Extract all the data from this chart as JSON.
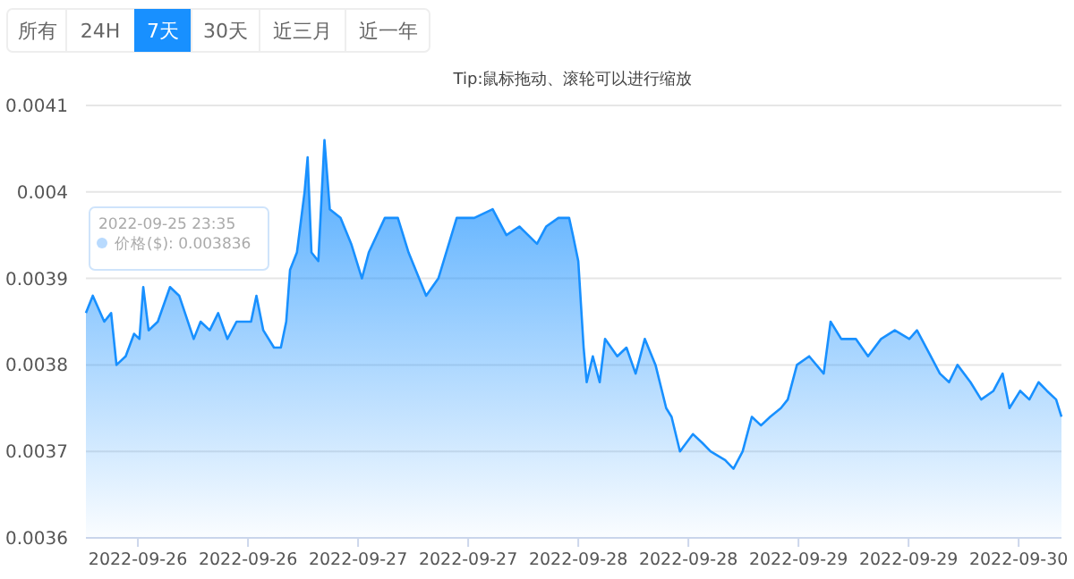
{
  "chart_data": {
    "type": "area",
    "subtitle": "Tip:鼠标拖动、滚轮可以进行缩放",
    "annotations": [
      "所有",
      "24H",
      "7天",
      "30天",
      "近三月",
      "近一年",
      "2022-09-25 23:35",
      "价格($): 0.003836"
    ],
    "xlim": [
      "2022-09-25T18:20",
      "2022-09-30T04:40"
    ],
    "xticks": [
      {
        "value": "2022-09-26T00:00",
        "label": "2022-09-26"
      },
      {
        "value": "2022-09-26T12:00",
        "label": "2022-09-26"
      },
      {
        "value": "2022-09-27T00:00",
        "label": "2022-09-27"
      },
      {
        "value": "2022-09-27T12:00",
        "label": "2022-09-27"
      },
      {
        "value": "2022-09-28T00:00",
        "label": "2022-09-28"
      },
      {
        "value": "2022-09-28T12:00",
        "label": "2022-09-28"
      },
      {
        "value": "2022-09-29T00:00",
        "label": "2022-09-29"
      },
      {
        "value": "2022-09-29T12:00",
        "label": "2022-09-29"
      },
      {
        "value": "2022-09-30T00:00",
        "label": "2022-09-30"
      }
    ],
    "ylim": [
      0.0036,
      0.0041
    ],
    "yticks": [
      0.0036,
      0.0037,
      0.0038,
      0.0039,
      0.004,
      0.0041
    ],
    "grid": "y",
    "x": [
      "2022-09-25T18:20",
      "2022-09-25T19:05",
      "2022-09-25T20:20",
      "2022-09-25T21:05",
      "2022-09-25T21:40",
      "2022-09-25T22:40",
      "2022-09-25T23:35",
      "2022-09-26T00:10",
      "2022-09-26T00:35",
      "2022-09-26T01:10",
      "2022-09-26T02:10",
      "2022-09-26T03:30",
      "2022-09-26T04:30",
      "2022-09-26T06:05",
      "2022-09-26T06:50",
      "2022-09-26T07:50",
      "2022-09-26T08:45",
      "2022-09-26T09:45",
      "2022-09-26T10:45",
      "2022-09-26T12:20",
      "2022-09-26T12:55",
      "2022-09-26T13:40",
      "2022-09-26T14:50",
      "2022-09-26T15:35",
      "2022-09-26T16:10",
      "2022-09-26T16:35",
      "2022-09-26T17:20",
      "2022-09-26T18:10",
      "2022-09-26T18:30",
      "2022-09-26T18:55",
      "2022-09-26T19:40",
      "2022-09-26T20:20",
      "2022-09-26T20:55",
      "2022-09-26T22:05",
      "2022-09-26T23:15",
      "2022-09-27T00:25",
      "2022-09-27T01:10",
      "2022-09-27T02:55",
      "2022-09-27T04:20",
      "2022-09-27T05:30",
      "2022-09-27T07:25",
      "2022-09-27T08:45",
      "2022-09-27T10:45",
      "2022-09-27T12:40",
      "2022-09-27T14:40",
      "2022-09-27T16:10",
      "2022-09-27T17:35",
      "2022-09-27T19:30",
      "2022-09-27T20:30",
      "2022-09-27T21:50",
      "2022-09-27T23:00",
      "2022-09-27T23:25",
      "2022-09-28T00:00",
      "2022-09-28T00:35",
      "2022-09-28T00:55",
      "2022-09-28T01:35",
      "2022-09-28T02:20",
      "2022-09-28T02:55",
      "2022-09-28T04:15",
      "2022-09-28T05:15",
      "2022-09-28T06:15",
      "2022-09-28T07:15",
      "2022-09-28T08:25",
      "2022-09-28T09:35",
      "2022-09-28T10:10",
      "2022-09-28T11:05",
      "2022-09-28T12:30",
      "2022-09-28T13:30",
      "2022-09-28T14:25",
      "2022-09-28T16:00",
      "2022-09-28T16:55",
      "2022-09-28T17:55",
      "2022-09-28T18:55",
      "2022-09-28T19:55",
      "2022-09-28T20:55",
      "2022-09-28T22:05",
      "2022-09-28T22:50",
      "2022-09-28T23:50",
      "2022-09-29T01:10",
      "2022-09-29T02:45",
      "2022-09-29T03:30",
      "2022-09-29T04:40",
      "2022-09-29T06:15",
      "2022-09-29T07:35",
      "2022-09-29T09:00",
      "2022-09-29T10:30",
      "2022-09-29T12:05",
      "2022-09-29T12:55",
      "2022-09-29T14:25",
      "2022-09-29T15:25",
      "2022-09-29T16:25",
      "2022-09-29T17:20",
      "2022-09-29T18:45",
      "2022-09-29T19:55",
      "2022-09-29T21:15",
      "2022-09-29T22:15",
      "2022-09-29T23:00",
      "2022-09-30T00:10",
      "2022-09-30T01:10",
      "2022-09-30T02:10",
      "2022-09-30T03:05",
      "2022-09-30T04:05",
      "2022-09-30T04:40"
    ],
    "series": [
      {
        "color": "#1890ff",
        "values": [
          0.00386,
          0.00388,
          0.00385,
          0.00386,
          0.0038,
          0.00381,
          0.003836,
          0.00383,
          0.00389,
          0.00384,
          0.00385,
          0.00389,
          0.00388,
          0.00383,
          0.00385,
          0.00384,
          0.00386,
          0.00383,
          0.00385,
          0.00385,
          0.00388,
          0.00384,
          0.00382,
          0.00382,
          0.00385,
          0.00391,
          0.00393,
          0.004,
          0.00404,
          0.00393,
          0.00392,
          0.00406,
          0.00398,
          0.00397,
          0.00394,
          0.0039,
          0.00393,
          0.00397,
          0.00397,
          0.00393,
          0.00388,
          0.0039,
          0.00397,
          0.00397,
          0.00398,
          0.00395,
          0.00396,
          0.00394,
          0.00396,
          0.00397,
          0.00397,
          0.00395,
          0.00392,
          0.00382,
          0.00378,
          0.00381,
          0.00378,
          0.00383,
          0.00381,
          0.00382,
          0.00379,
          0.00383,
          0.0038,
          0.00375,
          0.00374,
          0.0037,
          0.00372,
          0.00371,
          0.0037,
          0.00369,
          0.00368,
          0.0037,
          0.00374,
          0.00373,
          0.00374,
          0.00375,
          0.00376,
          0.0038,
          0.00381,
          0.00379,
          0.00385,
          0.00383,
          0.00383,
          0.00381,
          0.00383,
          0.00384,
          0.00383,
          0.00384,
          0.00381,
          0.00379,
          0.00378,
          0.0038,
          0.00378,
          0.00376,
          0.00377,
          0.00379,
          0.00375,
          0.00377,
          0.00376,
          0.00378,
          0.00377,
          0.00376,
          0.00374
        ]
      }
    ]
  }
}
